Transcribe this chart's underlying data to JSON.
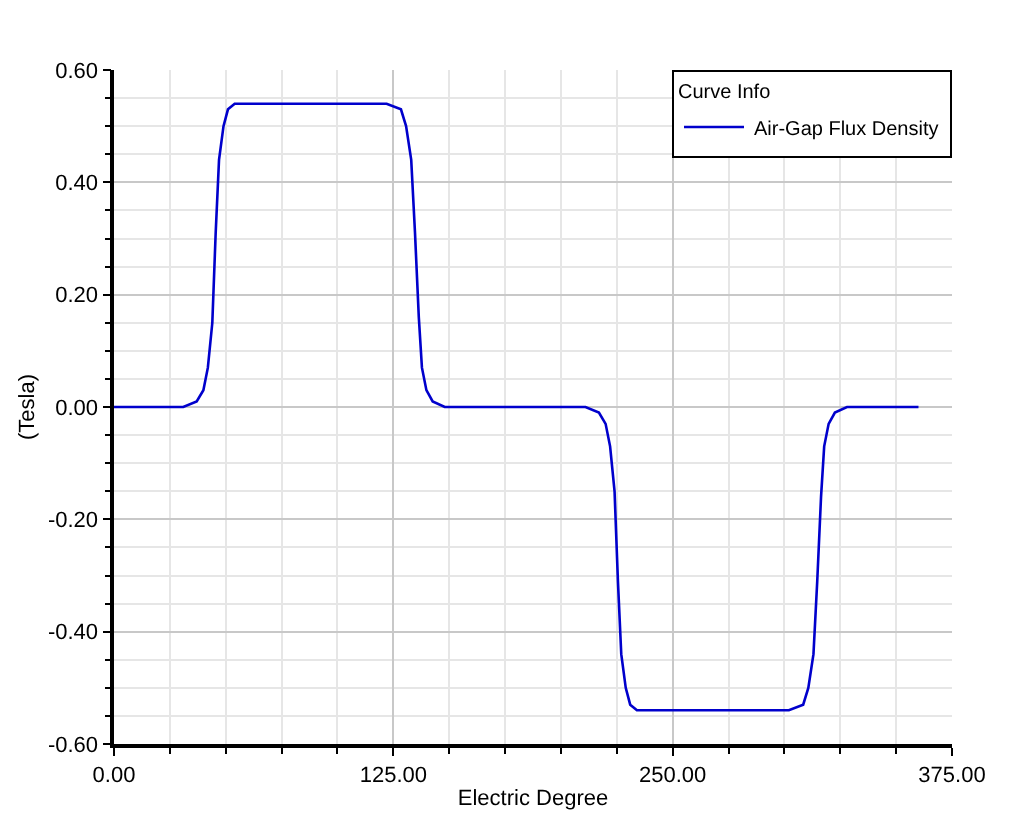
{
  "chart_data": {
    "type": "line",
    "xlabel": "Electric Degree",
    "ylabel": "(Tesla)",
    "legend_title": "Curve Info",
    "legend": "top right",
    "grid": true,
    "marker": "none",
    "line_style": "solid",
    "xlim": [
      0,
      375
    ],
    "xticks": [
      {
        "value": 0,
        "label": "0.00"
      },
      {
        "value": 125,
        "label": "125.00"
      },
      {
        "value": 250,
        "label": "250.00"
      },
      {
        "value": 375,
        "label": "375.00"
      }
    ],
    "ylim": [
      -0.6,
      0.6
    ],
    "yticks": [
      {
        "value": -0.6,
        "label": "-0.60"
      },
      {
        "value": -0.4,
        "label": "-0.40"
      },
      {
        "value": -0.2,
        "label": "-0.20"
      },
      {
        "value": 0,
        "label": "0.00"
      },
      {
        "value": 0.2,
        "label": "0.20"
      },
      {
        "value": 0.4,
        "label": "0.40"
      },
      {
        "value": 0.6,
        "label": "0.60"
      }
    ],
    "series": [
      {
        "name": "Air-Gap Flux Density",
        "color": "#0000cc",
        "x": [
          0,
          31,
          37,
          40,
          42,
          44,
          45.5,
          47,
          49,
          51,
          54,
          58,
          122,
          128.4,
          130.7,
          133,
          134.7,
          136.4,
          137.8,
          139.8,
          142.6,
          148,
          211,
          217,
          220,
          222,
          224,
          225.5,
          227,
          229,
          231,
          234,
          238,
          302,
          308.4,
          310.7,
          313,
          314.7,
          316.4,
          317.8,
          319.8,
          322.6,
          328,
          360
        ],
        "values": [
          0,
          0,
          0.01,
          0.03,
          0.07,
          0.15,
          0.31,
          0.44,
          0.5,
          0.53,
          0.54,
          0.54,
          0.54,
          0.53,
          0.5,
          0.44,
          0.31,
          0.16,
          0.07,
          0.03,
          0.01,
          0,
          0,
          -0.01,
          -0.03,
          -0.07,
          -0.15,
          -0.31,
          -0.44,
          -0.5,
          -0.53,
          -0.54,
          -0.54,
          -0.54,
          -0.53,
          -0.5,
          -0.44,
          -0.31,
          -0.16,
          -0.07,
          -0.03,
          -0.01,
          0,
          0
        ]
      }
    ]
  }
}
